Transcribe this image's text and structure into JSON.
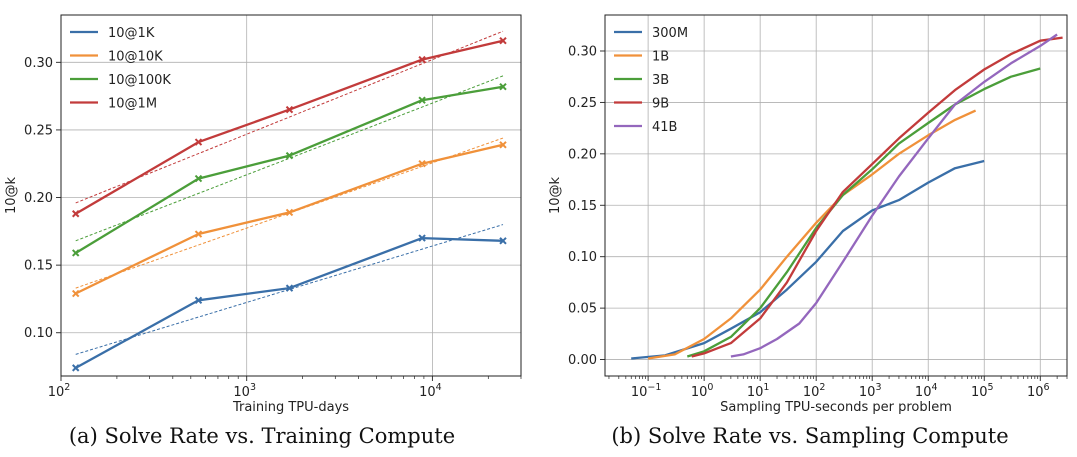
{
  "chart_data": [
    {
      "type": "line",
      "caption": "(a) Solve Rate vs. Training Compute",
      "xlabel": "Training TPU-days",
      "ylabel": "10@k",
      "xscale": "log",
      "xlim": [
        100,
        30000
      ],
      "ylim": [
        0.068,
        0.335
      ],
      "grid": true,
      "legend": "top-left",
      "x_ticks": [
        {
          "value": 100,
          "label": "10",
          "exp": "2"
        },
        {
          "value": 1000,
          "label": "10",
          "exp": "3"
        },
        {
          "value": 10000,
          "label": "10",
          "exp": "4"
        }
      ],
      "y_ticks": [
        {
          "value": 0.1,
          "label": "0.10"
        },
        {
          "value": 0.15,
          "label": "0.15"
        },
        {
          "value": 0.2,
          "label": "0.20"
        },
        {
          "value": 0.25,
          "label": "0.25"
        },
        {
          "value": 0.3,
          "label": "0.30"
        }
      ],
      "x": [
        120,
        550,
        1700,
        8800,
        24000
      ],
      "series": [
        {
          "name": "10@1K",
          "color": "#3a6fa8",
          "values": [
            0.074,
            0.124,
            0.133,
            0.17,
            0.168
          ],
          "trend": [
            0.084,
            0.18
          ]
        },
        {
          "name": "10@10K",
          "color": "#f0913a",
          "values": [
            0.129,
            0.173,
            0.189,
            0.225,
            0.239
          ],
          "trend": [
            0.133,
            0.244
          ]
        },
        {
          "name": "10@100K",
          "color": "#4b9e3a",
          "values": [
            0.159,
            0.214,
            0.231,
            0.272,
            0.282
          ],
          "trend": [
            0.168,
            0.29
          ]
        },
        {
          "name": "10@1M",
          "color": "#c23b3b",
          "values": [
            0.188,
            0.241,
            0.265,
            0.302,
            0.316
          ],
          "trend": [
            0.196,
            0.323
          ]
        }
      ]
    },
    {
      "type": "line",
      "caption": "(b) Solve Rate vs. Sampling Compute",
      "xlabel": "Sampling TPU-seconds per problem",
      "ylabel": "10@k",
      "xscale": "log",
      "xlim": [
        0.017,
        3000000
      ],
      "ylim": [
        -0.016,
        0.335
      ],
      "grid": true,
      "legend": "top-left",
      "x_ticks": [
        {
          "value": 0.1,
          "label": "10",
          "exp": "−1"
        },
        {
          "value": 1,
          "label": "10",
          "exp": "0"
        },
        {
          "value": 10,
          "label": "10",
          "exp": "1"
        },
        {
          "value": 100,
          "label": "10",
          "exp": "2"
        },
        {
          "value": 1000,
          "label": "10",
          "exp": "3"
        },
        {
          "value": 10000,
          "label": "10",
          "exp": "4"
        },
        {
          "value": 100000,
          "label": "10",
          "exp": "5"
        },
        {
          "value": 1000000,
          "label": "10",
          "exp": "6"
        }
      ],
      "y_ticks": [
        {
          "value": 0.0,
          "label": "0.00"
        },
        {
          "value": 0.05,
          "label": "0.05"
        },
        {
          "value": 0.1,
          "label": "0.10"
        },
        {
          "value": 0.15,
          "label": "0.15"
        },
        {
          "value": 0.2,
          "label": "0.20"
        },
        {
          "value": 0.25,
          "label": "0.25"
        },
        {
          "value": 0.3,
          "label": "0.30"
        }
      ],
      "series": [
        {
          "name": "300M",
          "color": "#3a6fa8",
          "x": [
            0.05,
            0.2,
            1,
            3,
            10,
            30,
            100,
            300,
            1000,
            3000,
            10000,
            30000,
            100000
          ],
          "values": [
            0.001,
            0.004,
            0.016,
            0.03,
            0.046,
            0.068,
            0.095,
            0.125,
            0.145,
            0.155,
            0.172,
            0.186,
            0.193
          ]
        },
        {
          "name": "1B",
          "color": "#f0913a",
          "x": [
            0.1,
            0.3,
            1,
            3,
            10,
            30,
            100,
            300,
            1000,
            3000,
            10000,
            30000,
            70000
          ],
          "values": [
            0.001,
            0.005,
            0.02,
            0.04,
            0.068,
            0.1,
            0.133,
            0.16,
            0.18,
            0.2,
            0.218,
            0.233,
            0.242
          ]
        },
        {
          "name": "3B",
          "color": "#4b9e3a",
          "x": [
            0.5,
            1,
            3,
            10,
            30,
            100,
            300,
            1000,
            3000,
            10000,
            30000,
            100000,
            300000,
            1000000
          ],
          "values": [
            0.003,
            0.008,
            0.022,
            0.05,
            0.085,
            0.128,
            0.16,
            0.185,
            0.21,
            0.23,
            0.248,
            0.263,
            0.275,
            0.283
          ]
        },
        {
          "name": "9B",
          "color": "#c23b3b",
          "x": [
            0.6,
            1,
            3,
            10,
            30,
            100,
            300,
            1000,
            3000,
            10000,
            30000,
            100000,
            300000,
            1000000,
            2500000
          ],
          "values": [
            0.003,
            0.006,
            0.016,
            0.04,
            0.075,
            0.125,
            0.163,
            0.19,
            0.215,
            0.24,
            0.262,
            0.282,
            0.297,
            0.31,
            0.313
          ]
        },
        {
          "name": "41B",
          "color": "#9467bd",
          "x": [
            3,
            5,
            10,
            20,
            50,
            100,
            300,
            1000,
            3000,
            10000,
            30000,
            100000,
            300000,
            1000000,
            2000000
          ],
          "values": [
            0.003,
            0.005,
            0.011,
            0.02,
            0.035,
            0.055,
            0.095,
            0.14,
            0.178,
            0.215,
            0.248,
            0.27,
            0.288,
            0.305,
            0.316
          ]
        }
      ]
    }
  ]
}
